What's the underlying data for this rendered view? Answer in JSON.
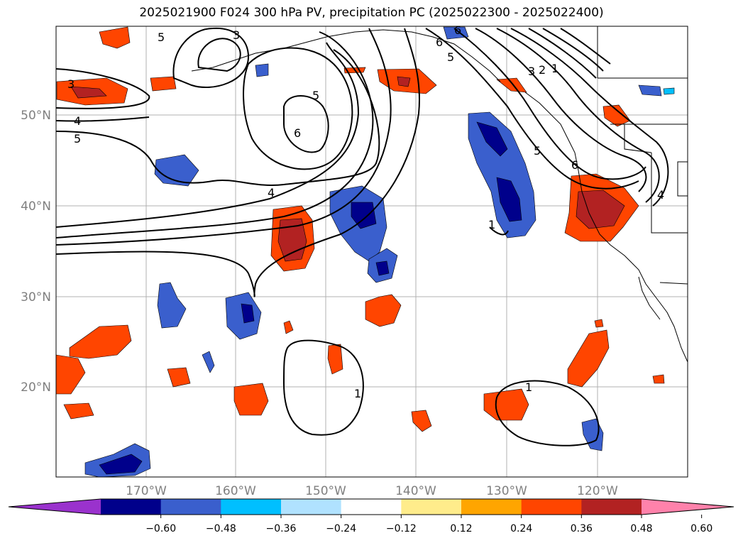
{
  "title": "2025021900 F024 300 hPa PV, precipitation PC (2025022300 - 2025022400)",
  "lat_labels": [
    "50°N",
    "40°N",
    "30°N",
    "20°N"
  ],
  "lon_labels": [
    "170°W",
    "160°W",
    "150°W",
    "140°W",
    "130°W",
    "120°W"
  ],
  "colorbar": {
    "ticks": [
      "−0.60",
      "−0.48",
      "−0.36",
      "−0.24",
      "−0.12",
      "0.12",
      "0.24",
      "0.36",
      "0.48",
      "0.60"
    ],
    "colors": [
      "#9a32cd",
      "#00008b",
      "#3a5fcd",
      "#00bfff",
      "#b0e2ff",
      "#ffffff",
      "#ffec8b",
      "#ffa500",
      "#ff4500",
      "#b22222",
      "#ff82ab"
    ]
  },
  "contour_labels": [
    "3",
    "4",
    "5",
    "3",
    "5",
    "6",
    "5",
    "6",
    "4",
    "6",
    "5",
    "3",
    "2",
    "1",
    "5",
    "6",
    "1",
    "1",
    "1",
    "4"
  ]
}
